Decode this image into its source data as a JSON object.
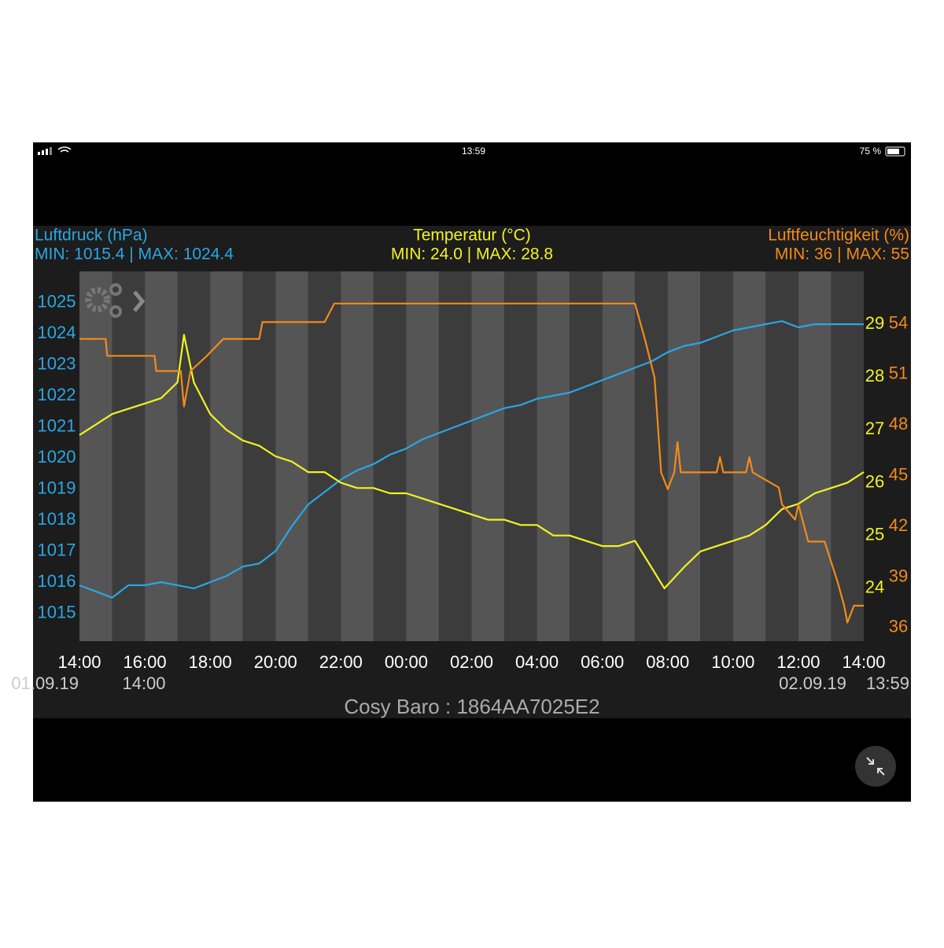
{
  "status_bar": {
    "time": "13:59",
    "battery": "75 %"
  },
  "chart_data": {
    "type": "line",
    "footer": "Cosy Baro : 1864AA7025E2",
    "start_date": "01.09.19",
    "start_time": "14:00",
    "end_date": "02.09.19",
    "end_time": "13:59",
    "xlim": [
      0,
      24
    ],
    "xticks": [
      {
        "value": 0,
        "label": "14:00"
      },
      {
        "value": 2,
        "label": "16:00"
      },
      {
        "value": 4,
        "label": "18:00"
      },
      {
        "value": 6,
        "label": "20:00"
      },
      {
        "value": 8,
        "label": "22:00"
      },
      {
        "value": 10,
        "label": "00:00"
      },
      {
        "value": 12,
        "label": "02:00"
      },
      {
        "value": 14,
        "label": "04:00"
      },
      {
        "value": 16,
        "label": "06:00"
      },
      {
        "value": 18,
        "label": "08:00"
      },
      {
        "value": 20,
        "label": "10:00"
      },
      {
        "value": 22,
        "label": "12:00"
      },
      {
        "value": 24,
        "label": "14:00"
      }
    ],
    "ylim": [
      1014.1,
      1026.0
    ],
    "yticks": [
      1015,
      1016,
      1017,
      1018,
      1019,
      1020,
      1021,
      1022,
      1023,
      1024,
      1025
    ],
    "y2lim": [
      23.0,
      30.0
    ],
    "y2ticks": [
      24,
      25,
      26,
      27,
      28,
      29
    ],
    "y3lim": [
      35.2,
      57.1
    ],
    "y3ticks": [
      36,
      39,
      42,
      45,
      48,
      51,
      54
    ],
    "series": [
      {
        "name": "Luftdruck (hPa)",
        "summary": "MIN: 1015.4 | MAX: 1024.4",
        "color": "#2aa6e4",
        "axis": "y",
        "x": [
          0,
          0.5,
          1,
          1.5,
          2,
          2.5,
          3,
          3.5,
          4,
          4.5,
          5,
          5.5,
          6,
          6.5,
          7,
          7.5,
          8,
          8.5,
          9,
          9.5,
          10,
          10.5,
          11,
          11.5,
          12,
          12.5,
          13,
          13.5,
          14,
          14.5,
          15,
          15.5,
          16,
          16.5,
          17,
          17.5,
          18,
          18.5,
          19,
          19.5,
          20,
          20.5,
          21,
          21.5,
          22,
          22.5,
          23,
          23.5,
          24
        ],
        "values": [
          1015.9,
          1015.7,
          1015.5,
          1015.9,
          1015.9,
          1016.0,
          1015.9,
          1015.8,
          1016.0,
          1016.2,
          1016.5,
          1016.6,
          1017.0,
          1017.8,
          1018.5,
          1018.9,
          1019.3,
          1019.6,
          1019.8,
          1020.1,
          1020.3,
          1020.6,
          1020.8,
          1021.0,
          1021.2,
          1021.4,
          1021.6,
          1021.7,
          1021.9,
          1022.0,
          1022.1,
          1022.3,
          1022.5,
          1022.7,
          1022.9,
          1023.1,
          1023.4,
          1023.6,
          1023.7,
          1023.9,
          1024.1,
          1024.2,
          1024.3,
          1024.4,
          1024.2,
          1024.3,
          1024.3,
          1024.3,
          1024.3
        ]
      },
      {
        "name": "Temperatur (°C)",
        "summary": "MIN: 24.0 | MAX: 28.8",
        "color": "#f2f224",
        "axis": "y2",
        "x": [
          0,
          0.5,
          1,
          1.5,
          2,
          2.5,
          3,
          3.2,
          3.5,
          4,
          4.5,
          5,
          5.5,
          6,
          6.5,
          7,
          7.5,
          8,
          8.5,
          9,
          9.5,
          10,
          10.5,
          11,
          11.5,
          12,
          12.5,
          13,
          13.5,
          14,
          14.5,
          15,
          15.5,
          16,
          16.5,
          17,
          17.5,
          17.9,
          18.5,
          19,
          19.5,
          20,
          20.5,
          21,
          21.5,
          22,
          22.5,
          23,
          23.5,
          24
        ],
        "values": [
          26.9,
          27.1,
          27.3,
          27.4,
          27.5,
          27.6,
          27.9,
          28.8,
          27.9,
          27.3,
          27.0,
          26.8,
          26.7,
          26.5,
          26.4,
          26.2,
          26.2,
          26.0,
          25.9,
          25.9,
          25.8,
          25.8,
          25.7,
          25.6,
          25.5,
          25.4,
          25.3,
          25.3,
          25.2,
          25.2,
          25.0,
          25.0,
          24.9,
          24.8,
          24.8,
          24.9,
          24.4,
          24.0,
          24.4,
          24.7,
          24.8,
          24.9,
          25.0,
          25.2,
          25.5,
          25.6,
          25.8,
          25.9,
          26.0,
          26.2
        ]
      },
      {
        "name": "Luftfeuchtigkeit (%)",
        "summary": "MIN: 36 | MAX: 55",
        "color": "#f28a1c",
        "axis": "y3",
        "x": [
          0,
          0.8,
          0.85,
          2.3,
          2.35,
          3.1,
          3.2,
          3.4,
          3.9,
          4.4,
          5.5,
          5.6,
          7.5,
          7.8,
          17,
          17.3,
          17.6,
          17.8,
          18.0,
          18.2,
          18.3,
          18.4,
          19.5,
          19.6,
          19.7,
          20.4,
          20.5,
          20.6,
          21.4,
          21.5,
          21.9,
          22.0,
          22.3,
          22.8,
          23.2,
          23.4,
          23.5,
          23.7,
          24
        ],
        "values": [
          53.1,
          53.1,
          52.1,
          52.1,
          51.2,
          51.2,
          49.1,
          51.2,
          52.1,
          53.1,
          53.1,
          54.1,
          54.1,
          55.2,
          55.2,
          53.1,
          50.8,
          45.2,
          44.2,
          45.2,
          47.0,
          45.2,
          45.2,
          46.1,
          45.2,
          45.2,
          46.1,
          45.2,
          44.3,
          43.3,
          42.4,
          43.3,
          41.1,
          41.1,
          38.7,
          37.3,
          36.3,
          37.3,
          37.3
        ]
      }
    ]
  }
}
